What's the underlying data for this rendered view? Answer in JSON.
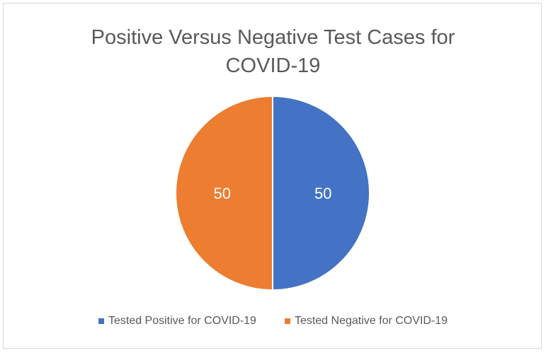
{
  "chart_data": {
    "type": "pie",
    "title_lines": [
      "Positive Versus Negative Test Cases for",
      "COVID-19"
    ],
    "categories": [
      "Tested Positive for COVID-19",
      "Tested Negative for COVID-19"
    ],
    "values": [
      50,
      50
    ],
    "colors": [
      "#4472c4",
      "#ed7d31"
    ],
    "data_labels": [
      "50",
      "50"
    ],
    "legend_position": "bottom"
  }
}
